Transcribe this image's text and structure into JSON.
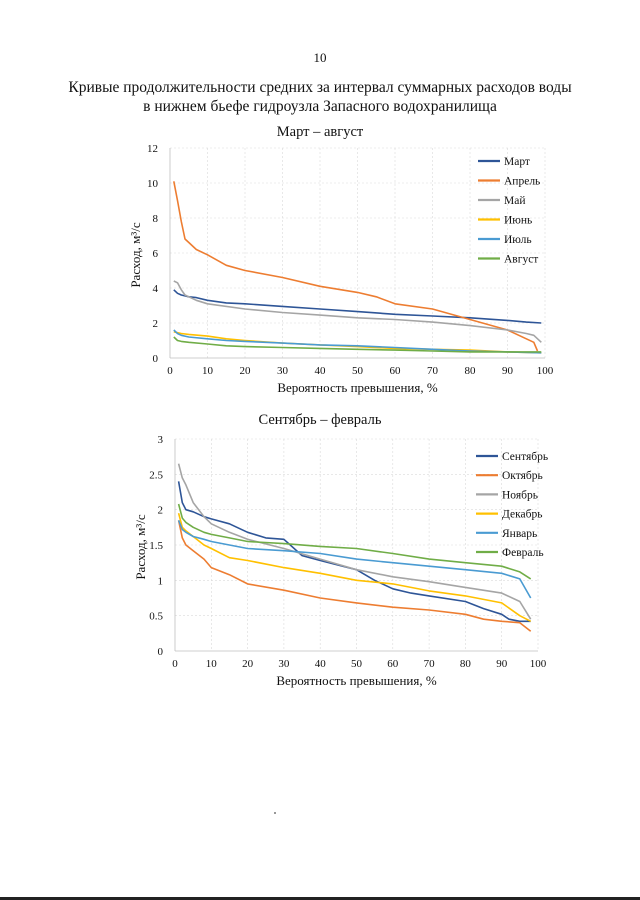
{
  "page": {
    "number": "10",
    "title_line1": "Кривые продолжительности средних за интервал суммарных расходов воды",
    "title_line2": "в нижнем бьефе гидроузла Запасного водохранилища"
  },
  "chart_data": [
    {
      "type": "line",
      "title": "Март – август",
      "xlabel": "Вероятность превышения, %",
      "ylabel": "Расход, м³/с",
      "xlim": [
        0,
        100
      ],
      "ylim": [
        0,
        12
      ],
      "xticks": [
        0,
        10,
        20,
        30,
        40,
        50,
        60,
        70,
        80,
        90,
        100
      ],
      "yticks": [
        0,
        2,
        4,
        6,
        8,
        10,
        12
      ],
      "grid": true,
      "legend_position": "right",
      "series": [
        {
          "name": "Март",
          "color": "#2e5597",
          "x": [
            1,
            2,
            3,
            4,
            5,
            7,
            10,
            15,
            20,
            30,
            40,
            50,
            60,
            70,
            80,
            90,
            95,
            99
          ],
          "y": [
            3.9,
            3.7,
            3.6,
            3.55,
            3.5,
            3.45,
            3.3,
            3.15,
            3.1,
            2.95,
            2.8,
            2.65,
            2.5,
            2.4,
            2.3,
            2.15,
            2.05,
            2.0
          ]
        },
        {
          "name": "Апрель",
          "color": "#ed7d31",
          "x": [
            1,
            2,
            3,
            4,
            5,
            7,
            10,
            15,
            20,
            30,
            40,
            50,
            55,
            60,
            70,
            80,
            90,
            95,
            97,
            98
          ],
          "y": [
            10.1,
            9.0,
            7.8,
            6.8,
            6.6,
            6.2,
            5.9,
            5.3,
            5.0,
            4.6,
            4.1,
            3.75,
            3.5,
            3.1,
            2.8,
            2.2,
            1.6,
            1.1,
            0.9,
            0.4
          ]
        },
        {
          "name": "Май",
          "color": "#a5a5a5",
          "x": [
            1,
            2,
            3,
            4,
            5,
            7,
            10,
            20,
            30,
            40,
            50,
            60,
            70,
            80,
            90,
            95,
            97,
            99
          ],
          "y": [
            4.4,
            4.3,
            3.9,
            3.6,
            3.5,
            3.3,
            3.1,
            2.8,
            2.6,
            2.45,
            2.3,
            2.2,
            2.05,
            1.85,
            1.6,
            1.4,
            1.3,
            0.9
          ]
        },
        {
          "name": "Июнь",
          "color": "#ffc000",
          "x": [
            1,
            2,
            3,
            5,
            10,
            15,
            20,
            30,
            40,
            50,
            60,
            70,
            80,
            90,
            99
          ],
          "y": [
            1.5,
            1.45,
            1.4,
            1.35,
            1.25,
            1.1,
            1.0,
            0.85,
            0.75,
            0.65,
            0.55,
            0.5,
            0.45,
            0.35,
            0.3
          ]
        },
        {
          "name": "Июль",
          "color": "#4a9bd2",
          "x": [
            1,
            2,
            3,
            5,
            10,
            15,
            20,
            30,
            40,
            50,
            60,
            70,
            80,
            90,
            99
          ],
          "y": [
            1.6,
            1.4,
            1.3,
            1.2,
            1.1,
            1.0,
            0.95,
            0.85,
            0.75,
            0.7,
            0.6,
            0.5,
            0.4,
            0.35,
            0.3
          ]
        },
        {
          "name": "Август",
          "color": "#70ad47",
          "x": [
            1,
            2,
            3,
            5,
            10,
            15,
            20,
            30,
            40,
            50,
            60,
            70,
            80,
            90,
            99
          ],
          "y": [
            1.2,
            1.0,
            0.95,
            0.9,
            0.8,
            0.7,
            0.65,
            0.6,
            0.55,
            0.5,
            0.45,
            0.4,
            0.35,
            0.35,
            0.35
          ]
        }
      ]
    },
    {
      "type": "line",
      "title": "Сентябрь – февраль",
      "xlabel": "Вероятность превышения, %",
      "ylabel": "Расход, м³/с",
      "xlim": [
        0,
        100
      ],
      "ylim": [
        0,
        3
      ],
      "xticks": [
        0,
        10,
        20,
        30,
        40,
        50,
        60,
        70,
        80,
        90,
        100
      ],
      "yticks": [
        0,
        0.5,
        1,
        1.5,
        2,
        2.5,
        3
      ],
      "grid": true,
      "legend_position": "right",
      "series": [
        {
          "name": "Сентябрь",
          "color": "#2e5597",
          "x": [
            1,
            2,
            3,
            5,
            8,
            10,
            15,
            20,
            25,
            30,
            35,
            40,
            50,
            55,
            60,
            65,
            70,
            80,
            85,
            90,
            92,
            95,
            98
          ],
          "y": [
            2.4,
            2.1,
            2.0,
            1.97,
            1.9,
            1.87,
            1.8,
            1.68,
            1.6,
            1.58,
            1.35,
            1.28,
            1.15,
            1.0,
            0.88,
            0.82,
            0.78,
            0.7,
            0.6,
            0.52,
            0.45,
            0.42,
            0.42
          ]
        },
        {
          "name": "Октябрь",
          "color": "#ed7d31",
          "x": [
            1,
            2,
            3,
            5,
            8,
            10,
            15,
            20,
            30,
            40,
            50,
            60,
            70,
            80,
            85,
            90,
            95,
            98
          ],
          "y": [
            1.85,
            1.6,
            1.5,
            1.42,
            1.3,
            1.18,
            1.08,
            0.95,
            0.86,
            0.75,
            0.68,
            0.62,
            0.58,
            0.52,
            0.45,
            0.42,
            0.4,
            0.28
          ]
        },
        {
          "name": "Ноябрь",
          "color": "#a5a5a5",
          "x": [
            1,
            2,
            3,
            5,
            8,
            10,
            15,
            20,
            30,
            40,
            50,
            60,
            70,
            80,
            90,
            95,
            98
          ],
          "y": [
            2.65,
            2.45,
            2.35,
            2.1,
            1.9,
            1.8,
            1.68,
            1.58,
            1.45,
            1.3,
            1.15,
            1.05,
            0.98,
            0.9,
            0.82,
            0.7,
            0.45
          ]
        },
        {
          "name": "Декабрь",
          "color": "#ffc000",
          "x": [
            1,
            2,
            3,
            5,
            8,
            10,
            15,
            20,
            30,
            40,
            50,
            60,
            70,
            80,
            90,
            95,
            98
          ],
          "y": [
            1.95,
            1.75,
            1.7,
            1.62,
            1.5,
            1.45,
            1.32,
            1.28,
            1.18,
            1.1,
            1.0,
            0.95,
            0.85,
            0.78,
            0.68,
            0.5,
            0.42
          ]
        },
        {
          "name": "Январь",
          "color": "#4a9bd2",
          "x": [
            1,
            2,
            3,
            5,
            8,
            10,
            15,
            20,
            30,
            40,
            50,
            60,
            70,
            80,
            90,
            95,
            98
          ],
          "y": [
            1.85,
            1.72,
            1.68,
            1.62,
            1.58,
            1.55,
            1.5,
            1.45,
            1.42,
            1.38,
            1.3,
            1.25,
            1.2,
            1.15,
            1.1,
            1.02,
            0.75
          ]
        },
        {
          "name": "Февраль",
          "color": "#70ad47",
          "x": [
            1,
            2,
            3,
            5,
            8,
            10,
            15,
            20,
            30,
            40,
            50,
            60,
            70,
            80,
            90,
            95,
            98
          ],
          "y": [
            2.08,
            1.88,
            1.82,
            1.75,
            1.68,
            1.65,
            1.6,
            1.55,
            1.52,
            1.48,
            1.45,
            1.38,
            1.3,
            1.25,
            1.2,
            1.12,
            1.02
          ]
        }
      ]
    }
  ]
}
